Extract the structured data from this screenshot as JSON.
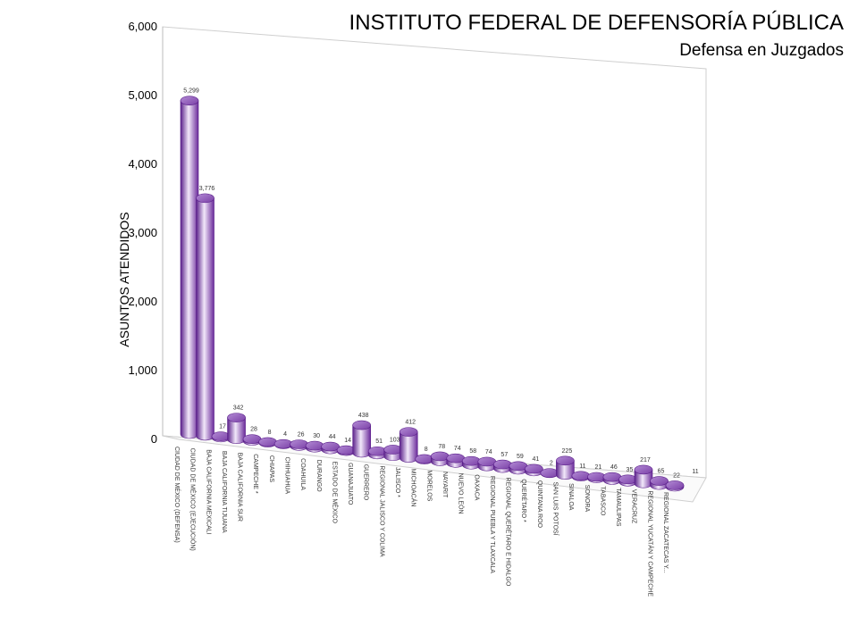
{
  "chart_data": {
    "type": "bar",
    "title": "INSTITUTO FEDERAL DE DEFENSORÍA PÚBLICA",
    "subtitle": "Defensa en Juzgados",
    "xlabel": "",
    "ylabel": "ASUNTOS ATENDIDOS",
    "ylim": [
      0,
      6000
    ],
    "yticks": [
      "0",
      "1,000",
      "2,000",
      "3,000",
      "4,000",
      "5,000",
      "6,000"
    ],
    "grid": false,
    "legend": "none",
    "bar_color": "#7a3fa6",
    "categories": [
      "CIUDAD DE MÉXICO  (DEFENSA)",
      "CIUDAD DE MÉXICO  (EJECUCIÓN)",
      "BAJA CALIFORNIA MEXICALI",
      "BAJA CALIFORNIA TIJUANA",
      "BAJA CALIFORNIA SUR",
      "CAMPECHE *",
      "CHIAPAS",
      "CHIHUAHUA",
      "COAHUILA",
      "DURANGO",
      "ESTADO DE MÉXICO",
      "GUANAJUATO",
      "GUERRERO",
      "REGIONAL JALISCO Y COLIMA",
      "JALISCO *",
      "MICHOACÁN",
      "MORELOS",
      "NAYARIT",
      "NUEVO LEÓN",
      "OAXACA",
      "REGIONAL PUEBLA Y TLAXCALA",
      "REGIONAL QUERÉTARO E HIDALGO",
      "QUERÉTARO *",
      "QUINTANA ROO",
      "SAN LUIS POTOSÍ",
      "SINALOA",
      "SONORA",
      "TABASCO",
      "TAMAULIPAS",
      "VERACRUZ",
      "REGIONAL YUCATÁN Y CAMPECHE",
      "REGIONAL ZACATECAS Y..."
    ],
    "values": [
      5299,
      3776,
      17,
      342,
      28,
      8,
      4,
      26,
      30,
      44,
      14,
      438,
      51,
      103,
      412,
      8,
      78,
      74,
      58,
      74,
      57,
      59,
      41,
      2,
      225,
      11,
      21,
      46,
      35,
      217,
      65,
      22
    ],
    "value_labels": [
      "5,299",
      "3,776",
      "17",
      "342",
      "28",
      "8",
      "4",
      "26",
      "30",
      "44",
      "14",
      "438",
      "51",
      "103",
      "412",
      "8",
      "78",
      "74",
      "58",
      "74",
      "57",
      "59",
      "41",
      "2",
      "225",
      "11",
      "21",
      "46",
      "35",
      "217",
      "65",
      "22"
    ],
    "extra_label": "11"
  }
}
